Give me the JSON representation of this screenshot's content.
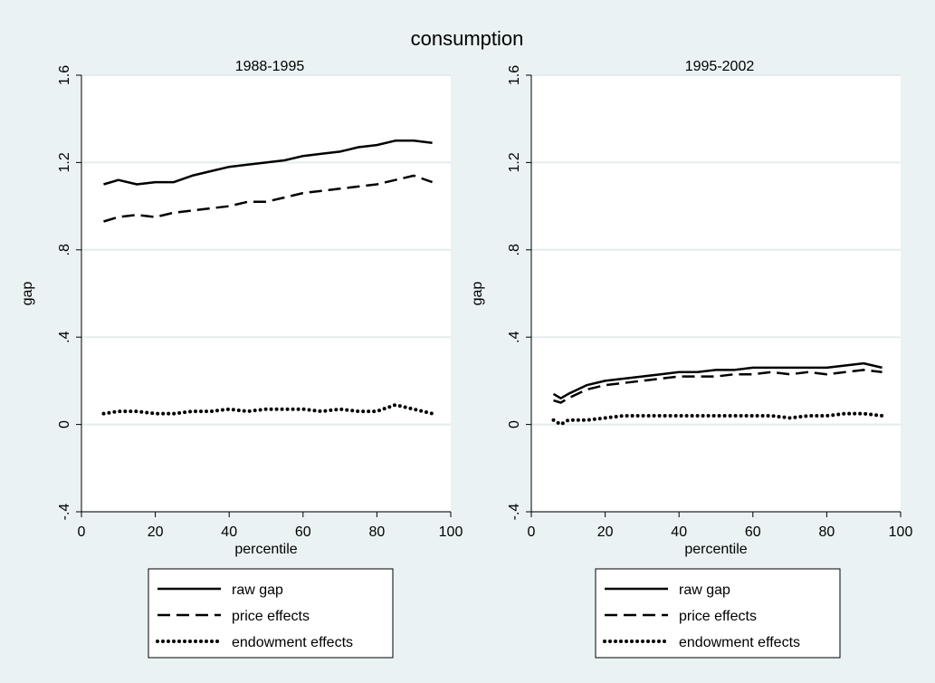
{
  "figure_title": "consumption",
  "colors": {
    "background": "#eaf2f3",
    "plot_area": "#ffffff",
    "grid": "#e5ecec",
    "line": "#000000"
  },
  "chart_data": [
    {
      "type": "line",
      "title": "1988-1995",
      "xlabel": "percentile",
      "ylabel": "gap",
      "xlim": [
        0,
        100
      ],
      "ylim": [
        -0.4,
        1.6
      ],
      "xticks": [
        "0",
        "20",
        "40",
        "60",
        "80",
        "100"
      ],
      "yticks": [
        "-.4",
        "0",
        ".4",
        ".8",
        "1.2",
        "1.6"
      ],
      "xtick_values": [
        0,
        20,
        40,
        60,
        80,
        100
      ],
      "ytick_values": [
        -0.4,
        0,
        0.4,
        0.8,
        1.2,
        1.6
      ],
      "grid": true,
      "legend": "below",
      "x": [
        6,
        10,
        15,
        20,
        25,
        30,
        35,
        40,
        45,
        50,
        55,
        60,
        65,
        70,
        75,
        80,
        85,
        90,
        95
      ],
      "series": [
        {
          "name": "raw gap",
          "style": "solid",
          "values": [
            1.1,
            1.12,
            1.1,
            1.11,
            1.11,
            1.14,
            1.16,
            1.18,
            1.19,
            1.2,
            1.21,
            1.23,
            1.24,
            1.25,
            1.27,
            1.28,
            1.3,
            1.3,
            1.29
          ]
        },
        {
          "name": "price effects",
          "style": "dashed",
          "values": [
            0.93,
            0.95,
            0.96,
            0.95,
            0.97,
            0.98,
            0.99,
            1.0,
            1.02,
            1.02,
            1.04,
            1.06,
            1.07,
            1.08,
            1.09,
            1.1,
            1.12,
            1.14,
            1.11
          ]
        },
        {
          "name": "endowment effects",
          "style": "dotted",
          "values": [
            0.05,
            0.06,
            0.06,
            0.05,
            0.05,
            0.06,
            0.06,
            0.07,
            0.06,
            0.07,
            0.07,
            0.07,
            0.06,
            0.07,
            0.06,
            0.06,
            0.09,
            0.07,
            0.05
          ]
        }
      ]
    },
    {
      "type": "line",
      "title": "1995-2002",
      "xlabel": "percentile",
      "ylabel": "gap",
      "xlim": [
        0,
        100
      ],
      "ylim": [
        -0.4,
        1.6
      ],
      "xticks": [
        "0",
        "20",
        "40",
        "60",
        "80",
        "100"
      ],
      "yticks": [
        "-.4",
        "0",
        ".4",
        ".8",
        "1.2",
        "1.6"
      ],
      "xtick_values": [
        0,
        20,
        40,
        60,
        80,
        100
      ],
      "ytick_values": [
        -0.4,
        0,
        0.4,
        0.8,
        1.2,
        1.6
      ],
      "grid": true,
      "legend": "below",
      "x": [
        6,
        8,
        10,
        15,
        20,
        25,
        30,
        35,
        40,
        45,
        50,
        55,
        60,
        65,
        70,
        75,
        80,
        85,
        90,
        95
      ],
      "series": [
        {
          "name": "raw gap",
          "style": "solid",
          "values": [
            0.14,
            0.12,
            0.14,
            0.18,
            0.2,
            0.21,
            0.22,
            0.23,
            0.24,
            0.24,
            0.25,
            0.25,
            0.26,
            0.26,
            0.26,
            0.26,
            0.26,
            0.27,
            0.28,
            0.26
          ]
        },
        {
          "name": "price effects",
          "style": "dashed",
          "values": [
            0.11,
            0.1,
            0.12,
            0.16,
            0.18,
            0.19,
            0.2,
            0.21,
            0.22,
            0.22,
            0.22,
            0.23,
            0.23,
            0.24,
            0.23,
            0.24,
            0.23,
            0.24,
            0.25,
            0.24
          ]
        },
        {
          "name": "endowment effects",
          "style": "dotted",
          "values": [
            0.02,
            0.0,
            0.02,
            0.02,
            0.03,
            0.04,
            0.04,
            0.04,
            0.04,
            0.04,
            0.04,
            0.04,
            0.04,
            0.04,
            0.03,
            0.04,
            0.04,
            0.05,
            0.05,
            0.04
          ]
        }
      ]
    }
  ]
}
